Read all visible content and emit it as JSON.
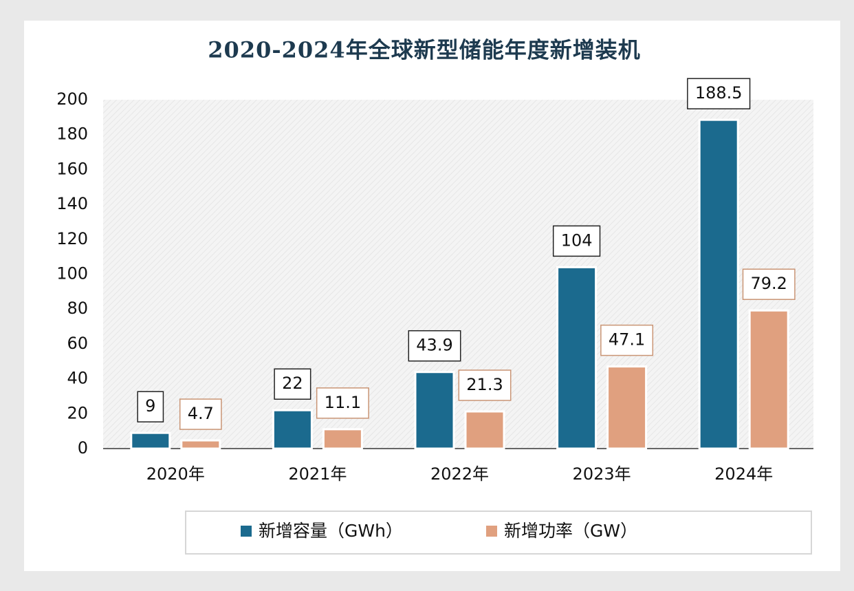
{
  "chart_data": {
    "type": "bar",
    "title": "2020-2024年全球新型储能年度新增装机",
    "categories": [
      "2020年",
      "2021年",
      "2022年",
      "2023年",
      "2024年"
    ],
    "series": [
      {
        "name": "新增容量（GWh）",
        "color": "#1b6a8e",
        "values": [
          9,
          22,
          43.9,
          104,
          188.5
        ]
      },
      {
        "name": "新增功率（GW）",
        "color": "#e0a07f",
        "values": [
          4.7,
          11.1,
          21.3,
          47.1,
          79.2
        ]
      }
    ],
    "ylim": [
      0,
      200
    ],
    "yticks": [
      0,
      20,
      40,
      60,
      80,
      100,
      120,
      140,
      160,
      180,
      200
    ]
  }
}
